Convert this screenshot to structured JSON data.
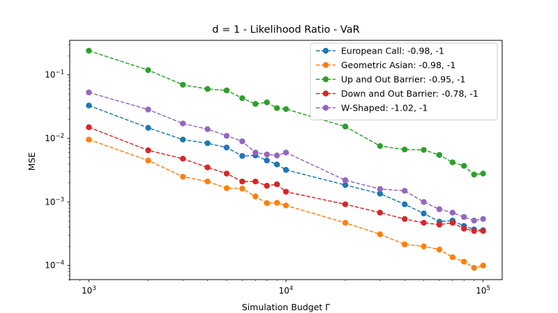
{
  "chart_data": {
    "type": "line",
    "title": "d = 1 - Likelihood Ratio - VaR",
    "xlabel": "Simulation Budget Γ",
    "ylabel": "MSE",
    "xscale": "log",
    "yscale": "log",
    "xlim": [
      800,
      125000
    ],
    "ylim": [
      6e-05,
      0.35
    ],
    "xticks": [
      {
        "value": 1000,
        "base": "10",
        "exp": "3"
      },
      {
        "value": 10000,
        "base": "10",
        "exp": "4"
      },
      {
        "value": 100000,
        "base": "10",
        "exp": "5"
      }
    ],
    "yticks": [
      {
        "value": 0.0001,
        "base": "10",
        "exp": "−4"
      },
      {
        "value": 0.001,
        "base": "10",
        "exp": "−3"
      },
      {
        "value": 0.01,
        "base": "10",
        "exp": "−2"
      },
      {
        "value": 0.1,
        "base": "10",
        "exp": "−1"
      }
    ],
    "grid": false,
    "legend_position": "top-right",
    "x": [
      1000,
      2000,
      3000,
      4000,
      5000,
      6000,
      7000,
      8000,
      9000,
      10000,
      20000,
      30000,
      40000,
      50000,
      60000,
      70000,
      80000,
      90000,
      100000
    ],
    "series": [
      {
        "name": "European Call: -0.98, -1",
        "color": "#1f77b4",
        "values": [
          0.033,
          0.0147,
          0.0096,
          0.0084,
          0.0072,
          0.0053,
          0.0054,
          0.0045,
          0.0039,
          0.0032,
          0.00185,
          0.00135,
          0.00092,
          0.00066,
          0.00049,
          0.00051,
          0.00042,
          0.00037,
          0.00036
        ]
      },
      {
        "name": "Geometric Asian: -0.98, -1",
        "color": "#ff7f0e",
        "values": [
          0.0096,
          0.0045,
          0.0025,
          0.0021,
          0.00165,
          0.00162,
          0.00122,
          0.00096,
          0.00097,
          0.00088,
          0.00047,
          0.00031,
          0.000215,
          0.0002,
          0.000178,
          0.000135,
          0.000115,
          9.2e-05,
          0.0001
        ]
      },
      {
        "name": "Up and Out Barrier: -0.95, -1",
        "color": "#2ca02c",
        "values": [
          0.24,
          0.119,
          0.07,
          0.06,
          0.057,
          0.043,
          0.035,
          0.037,
          0.03,
          0.029,
          0.0154,
          0.0076,
          0.0067,
          0.0066,
          0.0055,
          0.0042,
          0.0037,
          0.0027,
          0.0028
        ]
      },
      {
        "name": "Down and Out Barrier: -0.78, -1",
        "color": "#d62728",
        "values": [
          0.015,
          0.0065,
          0.0048,
          0.0035,
          0.0028,
          0.0021,
          0.0021,
          0.0018,
          0.0019,
          0.00145,
          0.00092,
          0.00068,
          0.00054,
          0.00047,
          0.00044,
          0.00047,
          0.00038,
          0.00035,
          0.00035
        ]
      },
      {
        "name": "W-Shaped: -1.02, -1",
        "color": "#9467bd",
        "values": [
          0.053,
          0.0285,
          0.0172,
          0.014,
          0.011,
          0.009,
          0.006,
          0.0056,
          0.0054,
          0.006,
          0.0022,
          0.0016,
          0.0015,
          0.001,
          0.00077,
          0.00068,
          0.00058,
          0.00051,
          0.00054
        ]
      }
    ]
  }
}
